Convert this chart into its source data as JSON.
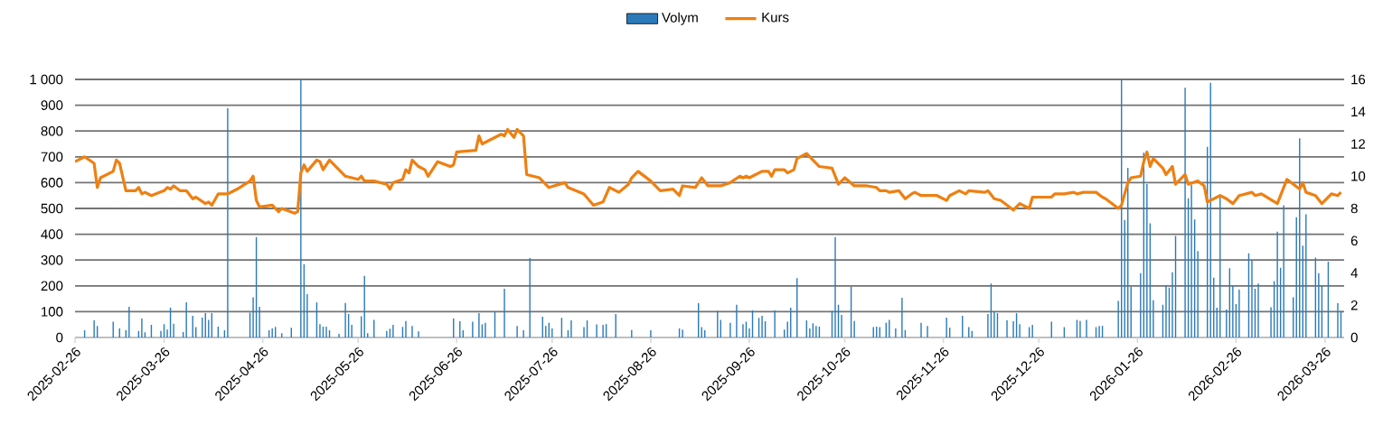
{
  "chart_data": {
    "type": "bar",
    "legend": "top",
    "grid": "y",
    "xlim": [
      "2025-02-26",
      "2026-04-01"
    ],
    "xticks": [
      "2025-02-26",
      "2025-03-26",
      "2025-04-26",
      "2025-05-26",
      "2025-06-26",
      "2025-07-26",
      "2025-08-26",
      "2025-09-26",
      "2025-10-26",
      "2025-11-26",
      "2025-12-26",
      "2026-01-26",
      "2026-02-26",
      "2026-03-26"
    ],
    "ylim": [
      0,
      1000
    ],
    "yticks": [
      0,
      100,
      200,
      300,
      400,
      500,
      600,
      700,
      800,
      900,
      {
        "value": 1000,
        "label": "1 000"
      }
    ],
    "y2lim": [
      0,
      16
    ],
    "y2ticks": [
      0,
      2,
      4,
      6,
      8,
      10,
      12,
      14,
      16
    ],
    "series": [
      {
        "name": "Volym",
        "color": "#2a7ab9",
        "x": [
          "2025-03-01",
          "2025-03-04",
          "2025-03-05",
          "2025-03-10",
          "2025-03-12",
          "2025-03-14",
          "2025-03-15",
          "2025-03-18",
          "2025-03-19",
          "2025-03-20",
          "2025-03-22",
          "2025-03-25",
          "2025-03-26",
          "2025-03-27",
          "2025-03-28",
          "2025-03-29",
          "2025-04-01",
          "2025-04-02",
          "2025-04-04",
          "2025-04-05",
          "2025-04-07",
          "2025-04-08",
          "2025-04-09",
          "2025-04-10",
          "2025-04-12",
          "2025-04-14",
          "2025-04-15",
          "2025-04-22",
          "2025-04-23",
          "2025-04-24",
          "2025-04-25",
          "2025-04-28",
          "2025-04-29",
          "2025-04-30",
          "2025-05-02",
          "2025-05-05",
          "2025-05-08",
          "2025-05-09",
          "2025-05-10",
          "2025-05-13",
          "2025-05-14",
          "2025-05-15",
          "2025-05-16",
          "2025-05-17",
          "2025-05-20",
          "2025-05-22",
          "2025-05-23",
          "2025-05-24",
          "2025-05-27",
          "2025-05-28",
          "2025-05-29",
          "2025-05-31",
          "2025-06-04",
          "2025-06-05",
          "2025-06-06",
          "2025-06-09",
          "2025-06-10",
          "2025-06-12",
          "2025-06-14",
          "2025-06-25",
          "2025-06-27",
          "2025-06-28",
          "2025-07-01",
          "2025-07-03",
          "2025-07-04",
          "2025-07-05",
          "2025-07-08",
          "2025-07-11",
          "2025-07-15",
          "2025-07-17",
          "2025-07-19",
          "2025-07-23",
          "2025-07-24",
          "2025-07-25",
          "2025-07-26",
          "2025-07-29",
          "2025-07-31",
          "2025-08-01",
          "2025-08-05",
          "2025-08-06",
          "2025-08-09",
          "2025-08-11",
          "2025-08-12",
          "2025-08-15",
          "2025-08-20",
          "2025-08-26",
          "2025-09-04",
          "2025-09-05",
          "2025-09-10",
          "2025-09-11",
          "2025-09-12",
          "2025-09-16",
          "2025-09-17",
          "2025-09-20",
          "2025-09-22",
          "2025-09-24",
          "2025-09-25",
          "2025-09-26",
          "2025-09-27",
          "2025-09-29",
          "2025-09-30",
          "2025-10-01",
          "2025-10-04",
          "2025-10-07",
          "2025-10-08",
          "2025-10-09",
          "2025-10-11",
          "2025-10-14",
          "2025-10-15",
          "2025-10-16",
          "2025-10-17",
          "2025-10-18",
          "2025-10-22",
          "2025-10-23",
          "2025-10-24",
          "2025-10-25",
          "2025-10-28",
          "2025-10-29",
          "2025-11-04",
          "2025-11-05",
          "2025-11-06",
          "2025-11-08",
          "2025-11-09",
          "2025-11-11",
          "2025-11-13",
          "2025-11-14",
          "2025-11-19",
          "2025-11-21",
          "2025-11-27",
          "2025-11-28",
          "2025-12-02",
          "2025-12-04",
          "2025-12-05",
          "2025-12-10",
          "2025-12-11",
          "2025-12-12",
          "2025-12-13",
          "2025-12-16",
          "2025-12-18",
          "2025-12-19",
          "2025-12-20",
          "2025-12-23",
          "2025-12-24",
          "2025-12-30",
          "2026-01-03",
          "2026-01-07",
          "2026-01-08",
          "2026-01-10",
          "2026-01-13",
          "2026-01-14",
          "2026-01-15",
          "2026-01-20",
          "2026-01-21",
          "2026-01-22",
          "2026-01-23",
          "2026-01-24",
          "2026-01-27",
          "2026-01-28",
          "2026-01-29",
          "2026-01-30",
          "2026-01-31",
          "2026-02-03",
          "2026-02-04",
          "2026-02-05",
          "2026-02-06",
          "2026-02-07",
          "2026-02-10",
          "2026-02-11",
          "2026-02-12",
          "2026-02-13",
          "2026-02-14",
          "2026-02-17",
          "2026-02-18",
          "2026-02-19",
          "2026-02-20",
          "2026-02-21",
          "2026-02-23",
          "2026-02-24",
          "2026-02-25",
          "2026-02-26",
          "2026-02-27",
          "2026-03-02",
          "2026-03-03",
          "2026-03-04",
          "2026-03-05",
          "2026-03-09",
          "2026-03-10",
          "2026-03-11",
          "2026-03-12",
          "2026-03-13",
          "2026-03-16",
          "2026-03-17",
          "2026-03-18",
          "2026-03-19",
          "2026-03-20",
          "2026-03-23",
          "2026-03-24",
          "2026-03-25",
          "2026-03-27",
          "2026-03-30",
          "2026-03-31"
        ],
        "values": [
          28,
          66,
          45,
          61,
          35,
          28,
          119,
          25,
          73,
          20,
          49,
          25,
          52,
          31,
          115,
          53,
          21,
          136,
          84,
          40,
          77,
          94,
          68,
          94,
          42,
          28,
          888,
          96,
          156,
          389,
          119,
          28,
          35,
          41,
          17,
          38,
          1000,
          284,
          168,
          136,
          52,
          42,
          42,
          28,
          14,
          134,
          91,
          49,
          82,
          239,
          17,
          68,
          25,
          34,
          49,
          41,
          64,
          45,
          24,
          73,
          63,
          28,
          61,
          94,
          51,
          57,
          100,
          189,
          45,
          28,
          308,
          80,
          45,
          57,
          35,
          76,
          28,
          66,
          40,
          66,
          51,
          49,
          52,
          91,
          29,
          28,
          35,
          31,
          133,
          40,
          28,
          103,
          68,
          57,
          127,
          52,
          61,
          35,
          105,
          76,
          84,
          63,
          105,
          31,
          61,
          115,
          230,
          66,
          35,
          55,
          45,
          42,
          103,
          389,
          127,
          87,
          197,
          64,
          40,
          42,
          40,
          57,
          68,
          35,
          154,
          29,
          57,
          45,
          77,
          38,
          84,
          40,
          25,
          91,
          209,
          101,
          94,
          66,
          63,
          94,
          52,
          40,
          49,
          61,
          40,
          68,
          64,
          68,
          40,
          45,
          45,
          142,
          1000,
          455,
          657,
          197,
          249,
          716,
          594,
          442,
          144,
          127,
          200,
          193,
          253,
          393,
          968,
          539,
          591,
          457,
          335,
          739,
          987,
          232,
          115,
          544,
          108,
          268,
          200,
          129,
          185,
          326,
          297,
          189,
          209,
          117,
          218,
          410,
          270,
          512,
          156,
          466,
          772,
          356,
          477,
          309,
          249,
          203,
          294,
          133,
          103
        ]
      },
      {
        "name": "Kurs",
        "type": "line",
        "axis": "y2",
        "color": "#ee8012",
        "x": [
          "2025-02-26",
          "2025-03-01",
          "2025-03-04",
          "2025-03-05",
          "2025-03-06",
          "2025-03-10",
          "2025-03-11",
          "2025-03-12",
          "2025-03-14",
          "2025-03-17",
          "2025-03-18",
          "2025-03-19",
          "2025-03-20",
          "2025-03-22",
          "2025-03-26",
          "2025-03-27",
          "2025-03-28",
          "2025-03-29",
          "2025-03-31",
          "2025-04-02",
          "2025-04-04",
          "2025-04-05",
          "2025-04-08",
          "2025-04-09",
          "2025-04-10",
          "2025-04-12",
          "2025-04-15",
          "2025-04-16",
          "2025-04-18",
          "2025-04-22",
          "2025-04-23",
          "2025-04-24",
          "2025-04-25",
          "2025-04-29",
          "2025-05-01",
          "2025-05-02",
          "2025-05-06",
          "2025-05-07",
          "2025-05-08",
          "2025-05-09",
          "2025-05-10",
          "2025-05-13",
          "2025-05-14",
          "2025-05-15",
          "2025-05-17",
          "2025-05-19",
          "2025-05-22",
          "2025-05-26",
          "2025-05-27",
          "2025-05-28",
          "2025-05-31",
          "2025-06-04",
          "2025-06-05",
          "2025-06-06",
          "2025-06-09",
          "2025-06-10",
          "2025-06-11",
          "2025-06-12",
          "2025-06-14",
          "2025-06-16",
          "2025-06-17",
          "2025-06-20",
          "2025-06-24",
          "2025-06-25",
          "2025-06-26",
          "2025-07-02",
          "2025-07-03",
          "2025-07-04",
          "2025-07-10",
          "2025-07-11",
          "2025-07-12",
          "2025-07-14",
          "2025-07-15",
          "2025-07-17",
          "2025-07-18",
          "2025-07-22",
          "2025-07-25",
          "2025-07-30",
          "2025-07-31",
          "2025-08-05",
          "2025-08-08",
          "2025-08-11",
          "2025-08-13",
          "2025-08-16",
          "2025-08-19",
          "2025-08-20",
          "2025-08-22",
          "2025-08-26",
          "2025-08-29",
          "2025-09-02",
          "2025-09-04",
          "2025-09-05",
          "2025-09-09",
          "2025-09-11",
          "2025-09-13",
          "2025-09-17",
          "2025-09-20",
          "2025-09-23",
          "2025-09-24",
          "2025-09-25",
          "2025-09-26",
          "2025-09-30",
          "2025-10-02",
          "2025-10-03",
          "2025-10-04",
          "2025-10-07",
          "2025-10-08",
          "2025-10-10",
          "2025-10-11",
          "2025-10-14",
          "2025-10-16",
          "2025-10-18",
          "2025-10-22",
          "2025-10-24",
          "2025-10-26",
          "2025-10-29",
          "2025-11-02",
          "2025-11-05",
          "2025-11-06",
          "2025-11-08",
          "2025-11-09",
          "2025-11-12",
          "2025-11-14",
          "2025-11-16",
          "2025-11-17",
          "2025-11-19",
          "2025-11-21",
          "2025-11-24",
          "2025-11-27",
          "2025-11-28",
          "2025-12-01",
          "2025-12-03",
          "2025-12-04",
          "2025-12-09",
          "2025-12-10",
          "2025-12-12",
          "2025-12-14",
          "2025-12-18",
          "2025-12-20",
          "2025-12-23",
          "2025-12-24",
          "2025-12-30",
          "2025-12-31",
          "2026-01-03",
          "2026-01-06",
          "2026-01-07",
          "2026-01-09",
          "2026-01-10",
          "2026-01-13",
          "2026-01-15",
          "2026-01-16",
          "2026-01-20",
          "2026-01-21",
          "2026-01-23",
          "2026-01-24",
          "2026-01-27",
          "2026-01-28",
          "2026-01-29",
          "2026-01-30",
          "2026-01-31",
          "2026-02-03",
          "2026-02-04",
          "2026-02-06",
          "2026-02-07",
          "2026-02-10",
          "2026-02-11",
          "2026-02-14",
          "2026-02-16",
          "2026-02-17",
          "2026-02-21",
          "2026-02-23",
          "2026-02-25",
          "2026-02-27",
          "2026-03-03",
          "2026-03-04",
          "2026-03-06",
          "2026-03-11",
          "2026-03-12",
          "2026-03-14",
          "2026-03-18",
          "2026-03-19",
          "2026-03-20",
          "2026-03-23",
          "2026-03-25",
          "2026-03-28",
          "2026-03-30",
          "2026-03-31"
        ],
        "values": [
          10.9,
          11.2,
          10.8,
          9.3,
          9.9,
          10.3,
          11.0,
          10.8,
          9.1,
          9.1,
          9.3,
          8.9,
          9.0,
          8.8,
          9.1,
          9.3,
          9.2,
          9.4,
          9.1,
          9.1,
          8.6,
          8.7,
          8.3,
          8.4,
          8.2,
          8.9,
          8.9,
          9.0,
          9.2,
          9.7,
          10.0,
          8.5,
          8.1,
          8.2,
          7.8,
          8.0,
          7.7,
          7.8,
          10.2,
          10.7,
          10.3,
          11.0,
          10.9,
          10.4,
          11.0,
          10.6,
          10.0,
          9.8,
          10.0,
          9.7,
          9.7,
          9.5,
          9.2,
          9.6,
          9.8,
          10.4,
          10.2,
          11.0,
          10.6,
          10.4,
          10.0,
          10.9,
          10.6,
          10.7,
          11.5,
          11.6,
          12.5,
          12.0,
          12.6,
          12.5,
          12.9,
          12.4,
          12.9,
          12.5,
          10.1,
          9.9,
          9.3,
          9.6,
          9.3,
          8.9,
          8.2,
          8.4,
          9.3,
          9.0,
          9.5,
          9.9,
          10.3,
          9.7,
          9.1,
          9.2,
          8.8,
          9.4,
          9.3,
          9.9,
          9.4,
          9.4,
          9.6,
          10.0,
          9.9,
          10.0,
          9.9,
          10.3,
          10.3,
          10.0,
          10.4,
          10.4,
          10.2,
          10.4,
          11.1,
          11.4,
          11.0,
          10.6,
          10.5,
          9.5,
          9.9,
          9.4,
          9.4,
          9.3,
          9.1,
          9.1,
          9.0,
          9.1,
          8.6,
          8.9,
          9.0,
          8.8,
          8.8,
          8.8,
          8.5,
          8.8,
          9.1,
          8.9,
          9.1,
          9.0,
          9.1,
          8.6,
          8.5,
          7.9,
          8.3,
          8.0,
          8.7,
          8.7,
          8.9,
          8.9,
          9.0,
          8.9,
          9.0,
          9.0,
          9.0,
          8.7,
          8.6,
          8.0,
          8.2,
          9.6,
          9.9,
          10.0,
          10.9,
          11.5,
          10.6,
          11.1,
          10.5,
          10.1,
          10.6,
          9.5,
          10.1,
          9.5,
          9.7,
          9.4,
          8.4,
          8.8,
          8.6,
          8.3,
          8.8,
          9.0,
          8.8,
          8.9,
          8.3,
          8.8,
          9.8,
          9.2,
          9.6,
          9.0,
          8.8,
          8.3,
          8.9,
          8.8,
          9.0
        ]
      }
    ]
  }
}
